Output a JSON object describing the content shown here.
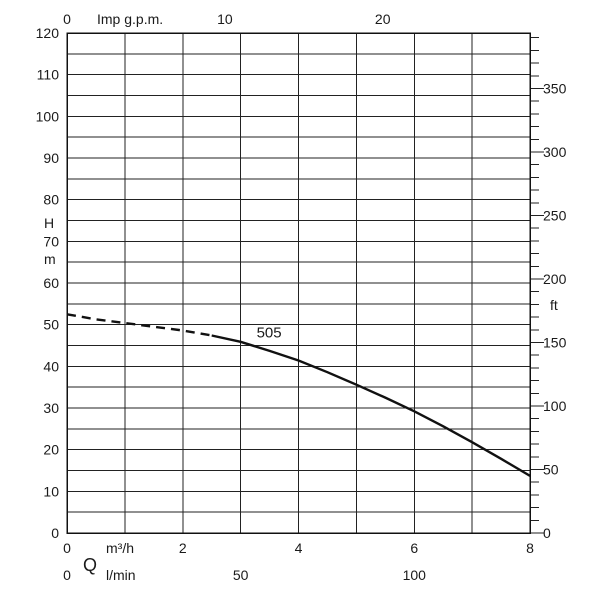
{
  "chart_data": {
    "type": "line",
    "grid": true,
    "x_primary": {
      "unit_label": "m³/h",
      "symbol": "Q",
      "range": [
        0,
        8
      ],
      "ticks": [
        0,
        2,
        4,
        6,
        8
      ],
      "gridlines": [
        0,
        1,
        2,
        3,
        4,
        5,
        6,
        7,
        8
      ]
    },
    "x_secondary_bottom": {
      "unit_label": "l/min",
      "ticks": [
        {
          "value": 0,
          "label": "0"
        },
        {
          "value": 50,
          "label": "50"
        },
        {
          "value": 100,
          "label": "100"
        }
      ],
      "per_m3h": 16.6667
    },
    "x_top": {
      "unit_label": "Imp g.p.m.",
      "ticks": [
        {
          "value": 0,
          "label": "0"
        },
        {
          "value": 10,
          "label": "10"
        },
        {
          "value": 20,
          "label": "20"
        }
      ],
      "per_m3h": 3.6662
    },
    "y_left": {
      "label_lines": [
        "H",
        "m"
      ],
      "range": [
        0,
        120
      ],
      "ticks": [
        0,
        10,
        20,
        30,
        40,
        50,
        60,
        70,
        80,
        90,
        100,
        110,
        120
      ],
      "gridlines": [
        0,
        5,
        10,
        15,
        20,
        25,
        30,
        35,
        40,
        45,
        50,
        55,
        60,
        65,
        70,
        75,
        80,
        85,
        90,
        95,
        100,
        105,
        110,
        115,
        120
      ]
    },
    "y_right": {
      "label": "ft",
      "ticks": [
        0,
        50,
        100,
        150,
        200,
        250,
        300,
        350
      ],
      "minor_step": 10,
      "ft_per_m": 3.28084
    },
    "series": [
      {
        "name": "505",
        "dashed_segment": [
          [
            0,
            52.5
          ],
          [
            0.5,
            51.3
          ],
          [
            1.0,
            50.4
          ],
          [
            1.5,
            49.5
          ],
          [
            2.0,
            48.6
          ],
          [
            2.5,
            47.4
          ]
        ],
        "solid_segment": [
          [
            2.5,
            47.4
          ],
          [
            3.0,
            45.9
          ],
          [
            3.5,
            43.7
          ],
          [
            4.0,
            41.4
          ],
          [
            4.5,
            38.6
          ],
          [
            5.0,
            35.6
          ],
          [
            5.5,
            32.5
          ],
          [
            6.0,
            29.2
          ],
          [
            6.5,
            25.6
          ],
          [
            7.0,
            21.8
          ],
          [
            7.5,
            17.8
          ],
          [
            8.0,
            13.7
          ]
        ],
        "label_at": [
          3.5,
          47.4
        ]
      }
    ]
  }
}
